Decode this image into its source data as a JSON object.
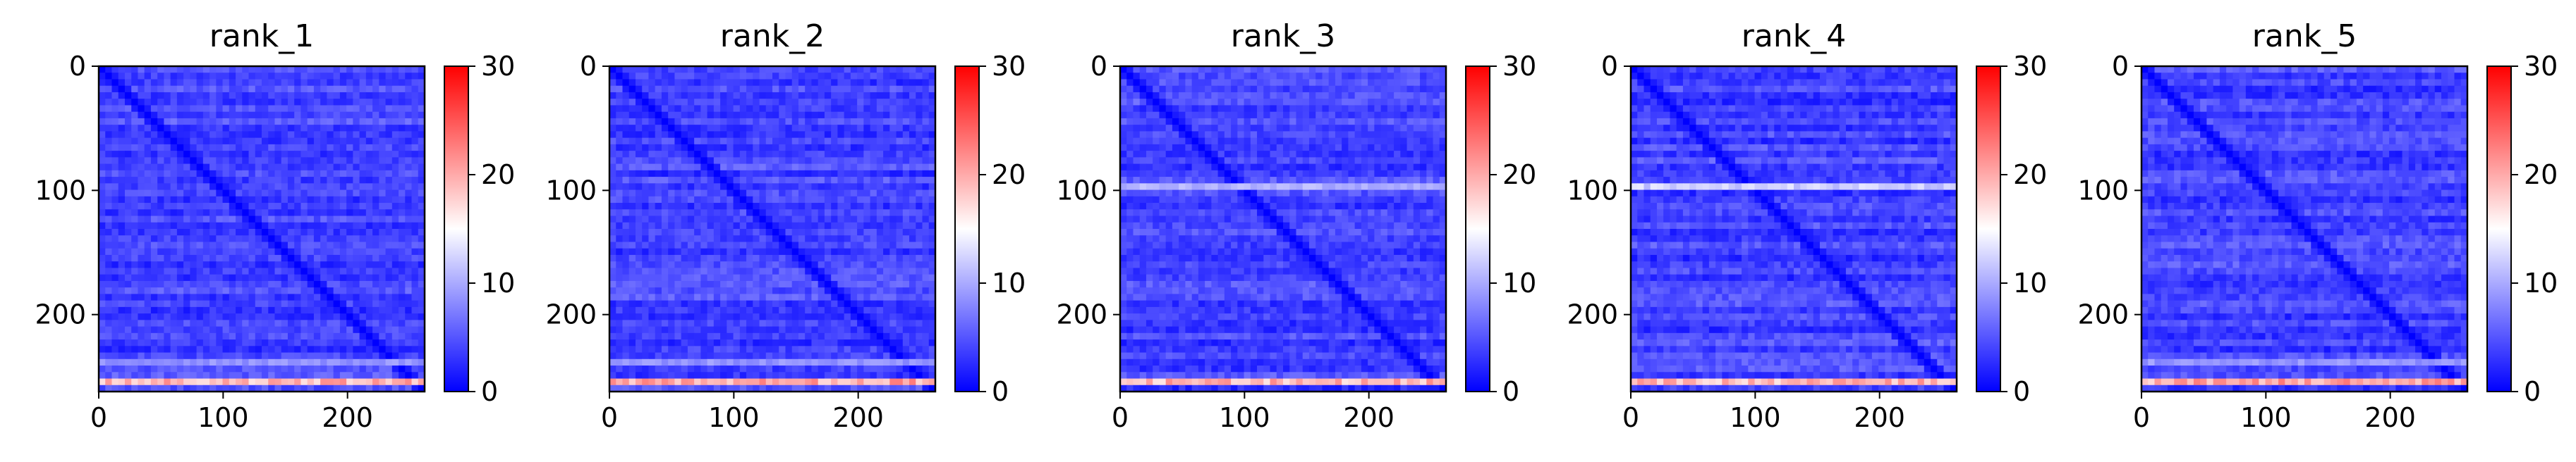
{
  "chart_data": [
    {
      "type": "heatmap",
      "title": "rank_1",
      "x_range": [
        0,
        262
      ],
      "y_range": [
        0,
        262
      ],
      "x_ticks": [
        "0",
        "100",
        "200"
      ],
      "y_ticks": [
        "0",
        "100",
        "200"
      ],
      "colorbar": {
        "range": [
          0,
          30
        ],
        "ticks": [
          "0",
          "10",
          "20",
          "30"
        ],
        "colors": [
          "#0000ff",
          "#ffffff",
          "#ff0000"
        ]
      },
      "features": {
        "diagonal_value": 0,
        "background_value": 4,
        "bright_rows": [
          {
            "row": 254,
            "value": 22
          },
          {
            "row": 240,
            "value": 10
          }
        ]
      }
    },
    {
      "type": "heatmap",
      "title": "rank_2",
      "x_range": [
        0,
        262
      ],
      "y_range": [
        0,
        262
      ],
      "x_ticks": [
        "0",
        "100",
        "200"
      ],
      "y_ticks": [
        "0",
        "100",
        "200"
      ],
      "colorbar": {
        "range": [
          0,
          30
        ],
        "ticks": [
          "0",
          "10",
          "20",
          "30"
        ],
        "colors": [
          "#0000ff",
          "#ffffff",
          "#ff0000"
        ]
      },
      "features": {
        "diagonal_value": 0,
        "background_value": 4,
        "bright_rows": [
          {
            "row": 254,
            "value": 23
          },
          {
            "row": 240,
            "value": 10
          }
        ]
      }
    },
    {
      "type": "heatmap",
      "title": "rank_3",
      "x_range": [
        0,
        262
      ],
      "y_range": [
        0,
        262
      ],
      "x_ticks": [
        "0",
        "100",
        "200"
      ],
      "y_ticks": [
        "0",
        "100",
        "200"
      ],
      "colorbar": {
        "range": [
          0,
          30
        ],
        "ticks": [
          "0",
          "10",
          "20",
          "30"
        ],
        "colors": [
          "#0000ff",
          "#ffffff",
          "#ff0000"
        ]
      },
      "features": {
        "diagonal_value": 0,
        "background_value": 4,
        "bright_rows": [
          {
            "row": 254,
            "value": 22
          },
          {
            "row": 98,
            "value": 12
          }
        ]
      }
    },
    {
      "type": "heatmap",
      "title": "rank_4",
      "x_range": [
        0,
        262
      ],
      "y_range": [
        0,
        262
      ],
      "x_ticks": [
        "0",
        "100",
        "200"
      ],
      "y_ticks": [
        "0",
        "100",
        "200"
      ],
      "colorbar": {
        "range": [
          0,
          30
        ],
        "ticks": [
          "0",
          "10",
          "20",
          "30"
        ],
        "colors": [
          "#0000ff",
          "#ffffff",
          "#ff0000"
        ]
      },
      "features": {
        "diagonal_value": 0,
        "background_value": 4,
        "bright_rows": [
          {
            "row": 254,
            "value": 22
          },
          {
            "row": 98,
            "value": 14
          }
        ]
      }
    },
    {
      "type": "heatmap",
      "title": "rank_5",
      "x_range": [
        0,
        262
      ],
      "y_range": [
        0,
        262
      ],
      "x_ticks": [
        "0",
        "100",
        "200"
      ],
      "y_ticks": [
        "0",
        "100",
        "200"
      ],
      "colorbar": {
        "range": [
          0,
          30
        ],
        "ticks": [
          "0",
          "10",
          "20",
          "30"
        ],
        "colors": [
          "#0000ff",
          "#ffffff",
          "#ff0000"
        ]
      },
      "features": {
        "diagonal_value": 0,
        "background_value": 4,
        "bright_rows": [
          {
            "row": 254,
            "value": 23
          },
          {
            "row": 240,
            "value": 10
          }
        ]
      }
    }
  ]
}
